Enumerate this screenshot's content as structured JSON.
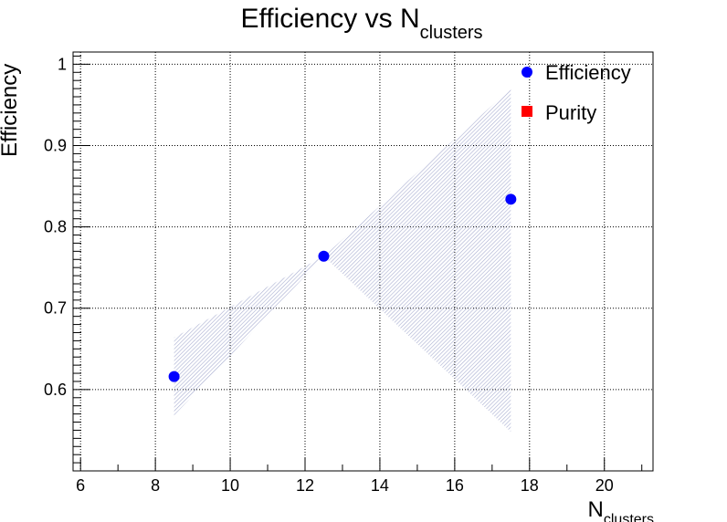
{
  "chart_data": {
    "type": "scatter",
    "title": {
      "main": "Efficiency vs N",
      "sub": "clusters"
    },
    "xlabel": {
      "main": "N",
      "sub": "clusters"
    },
    "ylabel": "Efficiency",
    "xlim": [
      5.8,
      21.3
    ],
    "ylim": [
      0.5,
      1.015
    ],
    "x_ticks": [
      6,
      8,
      10,
      12,
      14,
      16,
      18,
      20
    ],
    "y_ticks": [
      0.6,
      0.7,
      0.8,
      0.9,
      1
    ],
    "grid": true,
    "legend_position": "top-right",
    "colors": {
      "efficiency": "#0000ff",
      "purity": "#ff0000",
      "band": "#a8aed0"
    },
    "series": [
      {
        "name": "Efficiency",
        "marker": "circle",
        "x": [
          8.5,
          12.5,
          17.5
        ],
        "y": [
          0.616,
          0.764,
          0.834
        ],
        "band_lower": [
          0.568,
          0.764,
          0.548
        ],
        "band_upper": [
          0.664,
          0.764,
          0.97
        ]
      },
      {
        "name": "Purity",
        "marker": "square",
        "x": [],
        "y": []
      }
    ]
  }
}
